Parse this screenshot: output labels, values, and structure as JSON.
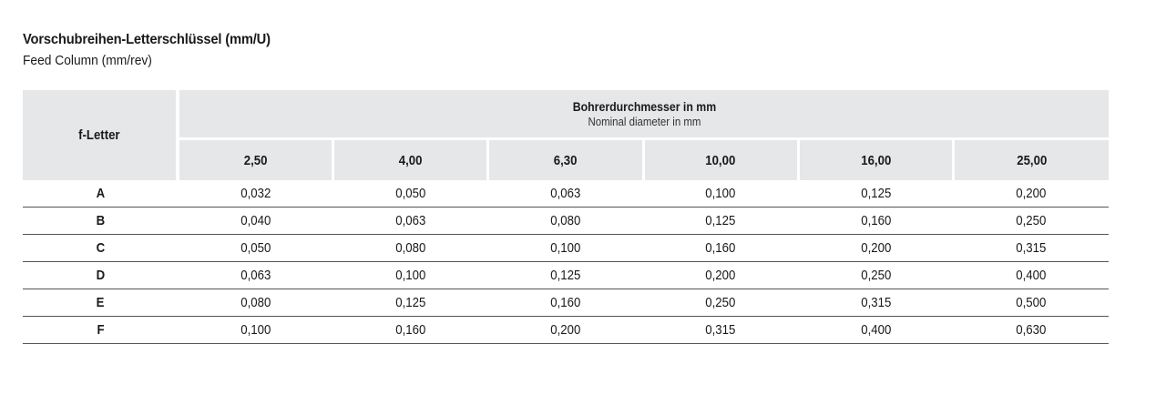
{
  "title": "Vorschubreihen-Letterschlüssel (mm/U)",
  "subtitle": "Feed Column (mm/rev)",
  "table": {
    "letter_header": "f-Letter",
    "group_header_de": "Bohrerdurchmesser in mm",
    "group_header_en": "Nominal diameter in mm",
    "diameters": [
      "2,50",
      "4,00",
      "6,30",
      "10,00",
      "16,00",
      "25,00"
    ],
    "rows": [
      {
        "letter": "A",
        "values": [
          "0,032",
          "0,050",
          "0,063",
          "0,100",
          "0,125",
          "0,200"
        ]
      },
      {
        "letter": "B",
        "values": [
          "0,040",
          "0,063",
          "0,080",
          "0,125",
          "0,160",
          "0,250"
        ]
      },
      {
        "letter": "C",
        "values": [
          "0,050",
          "0,080",
          "0,100",
          "0,160",
          "0,200",
          "0,315"
        ]
      },
      {
        "letter": "D",
        "values": [
          "0,063",
          "0,100",
          "0,125",
          "0,200",
          "0,250",
          "0,400"
        ]
      },
      {
        "letter": "E",
        "values": [
          "0,080",
          "0,125",
          "0,160",
          "0,250",
          "0,315",
          "0,500"
        ]
      },
      {
        "letter": "F",
        "values": [
          "0,100",
          "0,160",
          "0,200",
          "0,315",
          "0,400",
          "0,630"
        ]
      }
    ]
  }
}
